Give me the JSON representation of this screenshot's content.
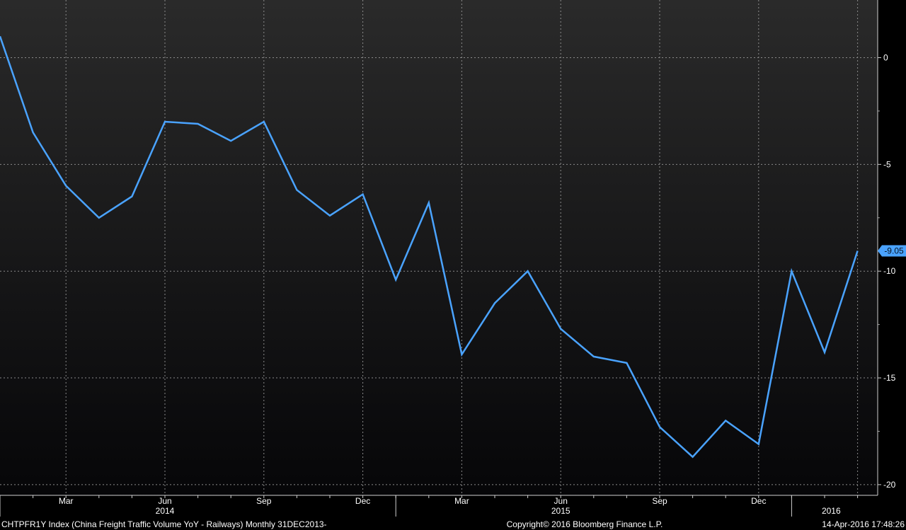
{
  "colors": {
    "background_top": "#2a2a2a",
    "background_bottom": "#060608",
    "line": "#4aa3ff",
    "grid": "#8a8a8a",
    "text": "#ffffff",
    "label_bg": "#4aa3ff"
  },
  "footer": {
    "left": "CHTPFR1Y Index (China Freight Traffic Volume YoY - Railways)  Monthly 31DEC2013-",
    "center": "Copyright© 2016 Bloomberg Finance L.P.",
    "right": "14-Apr-2016 17:48:26"
  },
  "chart_data": {
    "type": "line",
    "grid": true,
    "y_axis_side": "right",
    "ylim": [
      -20.5,
      2.7
    ],
    "y_ticks": [
      0,
      -5,
      -10,
      -15,
      -20
    ],
    "x_month_labels": [
      "Mar",
      "Jun",
      "Sep",
      "Dec",
      "Mar",
      "Jun",
      "Sep",
      "Dec"
    ],
    "x_year_labels": [
      "2014",
      "2015",
      "2016"
    ],
    "last_value_label": "-9.05",
    "series": [
      {
        "x": [
          "2014-01",
          "2014-02",
          "2014-03",
          "2014-04",
          "2014-05",
          "2014-06",
          "2014-07",
          "2014-08",
          "2014-09",
          "2014-10",
          "2014-11",
          "2014-12",
          "2015-01",
          "2015-02",
          "2015-03",
          "2015-04",
          "2015-05",
          "2015-06",
          "2015-07",
          "2015-08",
          "2015-09",
          "2015-10",
          "2015-11",
          "2015-12",
          "2016-01",
          "2016-02",
          "2016-03"
        ],
        "values": [
          1.0,
          -3.5,
          -6.0,
          -7.5,
          -6.5,
          -3.0,
          -3.1,
          -3.9,
          -3.0,
          -6.2,
          -7.4,
          -6.4,
          -10.4,
          -6.8,
          -13.9,
          -11.5,
          -10.0,
          -12.7,
          -14.0,
          -14.3,
          -17.3,
          -18.7,
          -17.0,
          -18.1,
          -10.0,
          -13.8,
          -9.05
        ]
      }
    ]
  }
}
